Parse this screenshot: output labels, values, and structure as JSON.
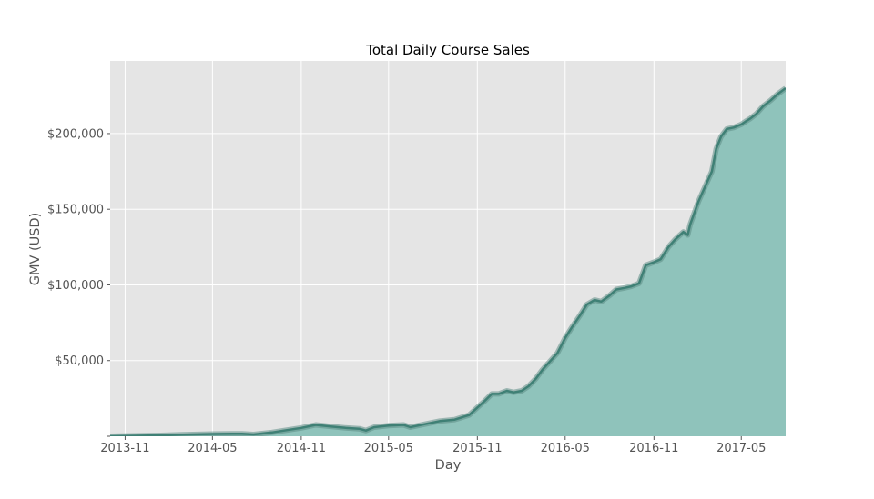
{
  "chart_data": {
    "type": "area",
    "title": "Total Daily Course Sales",
    "xlabel": "Day",
    "ylabel": "GMV (USD)",
    "x_tick_labels": [
      "2013-11",
      "2014-05",
      "2014-11",
      "2015-05",
      "2015-11",
      "2016-05",
      "2016-11",
      "2017-05"
    ],
    "x_ticks": [
      "2013-11-01",
      "2014-05-01",
      "2014-11-01",
      "2015-05-01",
      "2015-11-01",
      "2016-05-01",
      "2016-11-01",
      "2017-05-01"
    ],
    "y_ticks": [
      0,
      50000,
      100000,
      150000,
      200000
    ],
    "y_tick_labels": [
      "",
      "$50,000",
      "$100,000",
      "$150,000",
      "$200,000"
    ],
    "xlim": [
      "2013-10-01",
      "2017-08-01"
    ],
    "ylim": [
      0,
      248000
    ],
    "grid": true,
    "colors": {
      "background": "#e5e5e5",
      "grid": "#ffffff",
      "fill": "#8fc3bb",
      "line": "#3f8075",
      "line_glow": "#5e8e87"
    },
    "series": [
      {
        "x": [
          "2013-10-01",
          "2014-01-15",
          "2014-03-01",
          "2014-05-01",
          "2014-07-01",
          "2014-07-25",
          "2014-09-01",
          "2014-10-01",
          "2014-11-01",
          "2014-12-01",
          "2015-01-01",
          "2015-02-01",
          "2015-03-01",
          "2015-03-15",
          "2015-04-01",
          "2015-05-01",
          "2015-06-01",
          "2015-06-15",
          "2015-07-15",
          "2015-08-15",
          "2015-09-15",
          "2015-10-15",
          "2015-11-01",
          "2015-11-15",
          "2015-12-01",
          "2015-12-15",
          "2016-01-01",
          "2016-01-15",
          "2016-02-01",
          "2016-02-15",
          "2016-03-01",
          "2016-03-15",
          "2016-04-01",
          "2016-04-15",
          "2016-05-01",
          "2016-05-15",
          "2016-06-01",
          "2016-06-15",
          "2016-07-01",
          "2016-07-15",
          "2016-08-01",
          "2016-08-15",
          "2016-09-01",
          "2016-09-15",
          "2016-10-01",
          "2016-10-15",
          "2016-11-01",
          "2016-11-15",
          "2016-12-01",
          "2016-12-15",
          "2017-01-01",
          "2017-01-10",
          "2017-01-15",
          "2017-02-01",
          "2017-02-15",
          "2017-03-01",
          "2017-03-10",
          "2017-03-20",
          "2017-04-01",
          "2017-04-15",
          "2017-05-01",
          "2017-05-10",
          "2017-05-20",
          "2017-06-01",
          "2017-06-15",
          "2017-07-01",
          "2017-07-15",
          "2017-08-01"
        ],
        "values": [
          0,
          600,
          1000,
          1500,
          1700,
          1200,
          2500,
          4000,
          5500,
          7500,
          6500,
          5500,
          5000,
          3800,
          6000,
          7000,
          7500,
          6000,
          8000,
          10000,
          11000,
          14000,
          19000,
          23000,
          28000,
          28000,
          30000,
          29000,
          30000,
          33000,
          38000,
          44000,
          50000,
          55000,
          65000,
          72000,
          80000,
          87000,
          90000,
          89000,
          93000,
          97000,
          98000,
          99000,
          101000,
          113000,
          115000,
          117000,
          125000,
          130000,
          135000,
          133000,
          140000,
          155000,
          165000,
          175000,
          190000,
          198000,
          203000,
          204000,
          206000,
          208000,
          210000,
          213000,
          218000,
          222000,
          226000,
          230000
        ]
      }
    ]
  }
}
